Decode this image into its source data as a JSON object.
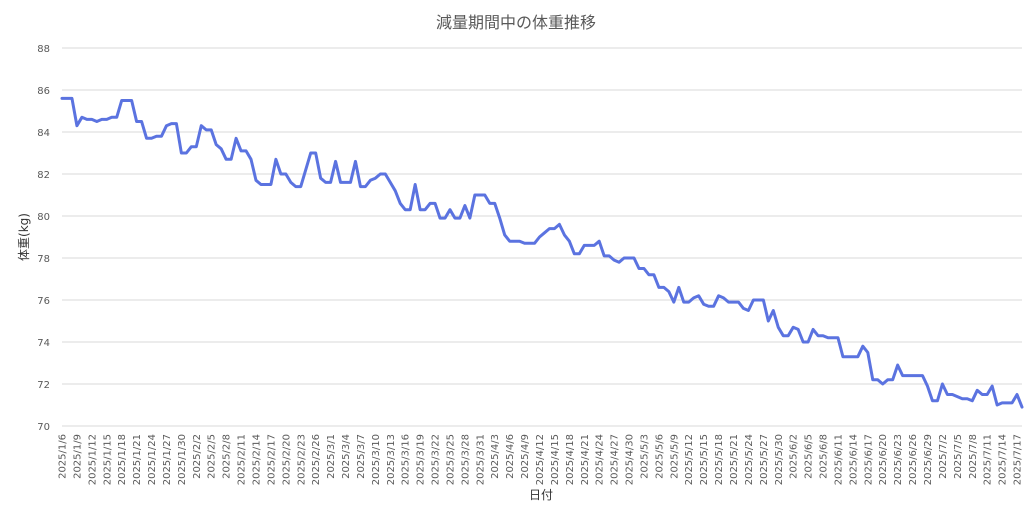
{
  "chart_data": {
    "type": "line",
    "title": "減量期間中の体重推移",
    "xlabel": "日付",
    "ylabel": "体重(kg)",
    "ylim": [
      70,
      88
    ],
    "yticks": [
      70,
      72,
      74,
      76,
      78,
      80,
      82,
      84,
      86,
      88
    ],
    "grid": true,
    "legend": "none",
    "color": "#5b73e0",
    "x_tick_labels": [
      "2025/1/6",
      "2025/1/9",
      "2025/1/12",
      "2025/1/15",
      "2025/1/18",
      "2025/1/21",
      "2025/1/24",
      "2025/1/27",
      "2025/1/30",
      "2025/2/2",
      "2025/2/5",
      "2025/2/8",
      "2025/2/11",
      "2025/2/14",
      "2025/2/17",
      "2025/2/20",
      "2025/2/23",
      "2025/2/26",
      "2025/3/1",
      "2025/3/4",
      "2025/3/7",
      "2025/3/10",
      "2025/3/13",
      "2025/3/16",
      "2025/3/19",
      "2025/3/22",
      "2025/3/25",
      "2025/3/28",
      "2025/3/31",
      "2025/4/3",
      "2025/4/6",
      "2025/4/9",
      "2025/4/12",
      "2025/4/15",
      "2025/4/18",
      "2025/4/21",
      "2025/4/24",
      "2025/4/27",
      "2025/4/30",
      "2025/5/3",
      "2025/5/6",
      "2025/5/9",
      "2025/5/12",
      "2025/5/15",
      "2025/5/18",
      "2025/5/21",
      "2025/5/24",
      "2025/5/27",
      "2025/5/30",
      "2025/6/2",
      "2025/6/5",
      "2025/6/8",
      "2025/6/11",
      "2025/6/14",
      "2025/6/17",
      "2025/6/20",
      "2025/6/23",
      "2025/6/26",
      "2025/6/29",
      "2025/7/2",
      "2025/7/5",
      "2025/7/8",
      "2025/7/11",
      "2025/7/14",
      "2025/7/17"
    ],
    "series": [
      {
        "start_date": "2025/1/6",
        "values": [
          85.6,
          85.6,
          85.6,
          84.3,
          84.7,
          84.6,
          84.6,
          84.5,
          84.6,
          84.6,
          84.7,
          84.7,
          85.5,
          85.5,
          85.5,
          84.5,
          84.5,
          83.7,
          83.7,
          83.8,
          83.8,
          84.3,
          84.4,
          84.4,
          83.0,
          83.0,
          83.3,
          83.3,
          84.3,
          84.1,
          84.1,
          83.4,
          83.2,
          82.7,
          82.7,
          83.7,
          83.1,
          83.1,
          82.7,
          81.7,
          81.5,
          81.5,
          81.5,
          82.7,
          82.0,
          82.0,
          81.6,
          81.4,
          81.4,
          82.2,
          83.0,
          83.0,
          81.8,
          81.6,
          81.6,
          82.6,
          81.6,
          81.6,
          81.6,
          82.6,
          81.4,
          81.4,
          81.7,
          81.8,
          82.0,
          82.0,
          81.6,
          81.2,
          80.6,
          80.3,
          80.3,
          81.5,
          80.3,
          80.3,
          80.6,
          80.6,
          79.9,
          79.9,
          80.3,
          79.9,
          79.9,
          80.5,
          79.9,
          81.0,
          81.0,
          81.0,
          80.6,
          80.6,
          79.9,
          79.1,
          78.8,
          78.8,
          78.8,
          78.7,
          78.7,
          78.7,
          79.0,
          79.2,
          79.4,
          79.4,
          79.6,
          79.1,
          78.8,
          78.2,
          78.2,
          78.6,
          78.6,
          78.6,
          78.8,
          78.1,
          78.1,
          77.9,
          77.8,
          78.0,
          78.0,
          78.0,
          77.5,
          77.5,
          77.2,
          77.2,
          76.6,
          76.6,
          76.4,
          75.9,
          76.6,
          75.9,
          75.9,
          76.1,
          76.2,
          75.8,
          75.7,
          75.7,
          76.2,
          76.1,
          75.9,
          75.9,
          75.9,
          75.6,
          75.5,
          76.0,
          76.0,
          76.0,
          75.0,
          75.5,
          74.7,
          74.3,
          74.3,
          74.7,
          74.6,
          74.0,
          74.0,
          74.6,
          74.3,
          74.3,
          74.2,
          74.2,
          74.2,
          73.3,
          73.3,
          73.3,
          73.3,
          73.8,
          73.5,
          72.2,
          72.2,
          72.0,
          72.2,
          72.2,
          72.9,
          72.4,
          72.4,
          72.4,
          72.4,
          72.4,
          71.9,
          71.2,
          71.2,
          72.0,
          71.5,
          71.5,
          71.4,
          71.3,
          71.3,
          71.2,
          71.7,
          71.5,
          71.5,
          71.9,
          71.0,
          71.1,
          71.1,
          71.1,
          71.5,
          70.9
        ]
      }
    ]
  }
}
